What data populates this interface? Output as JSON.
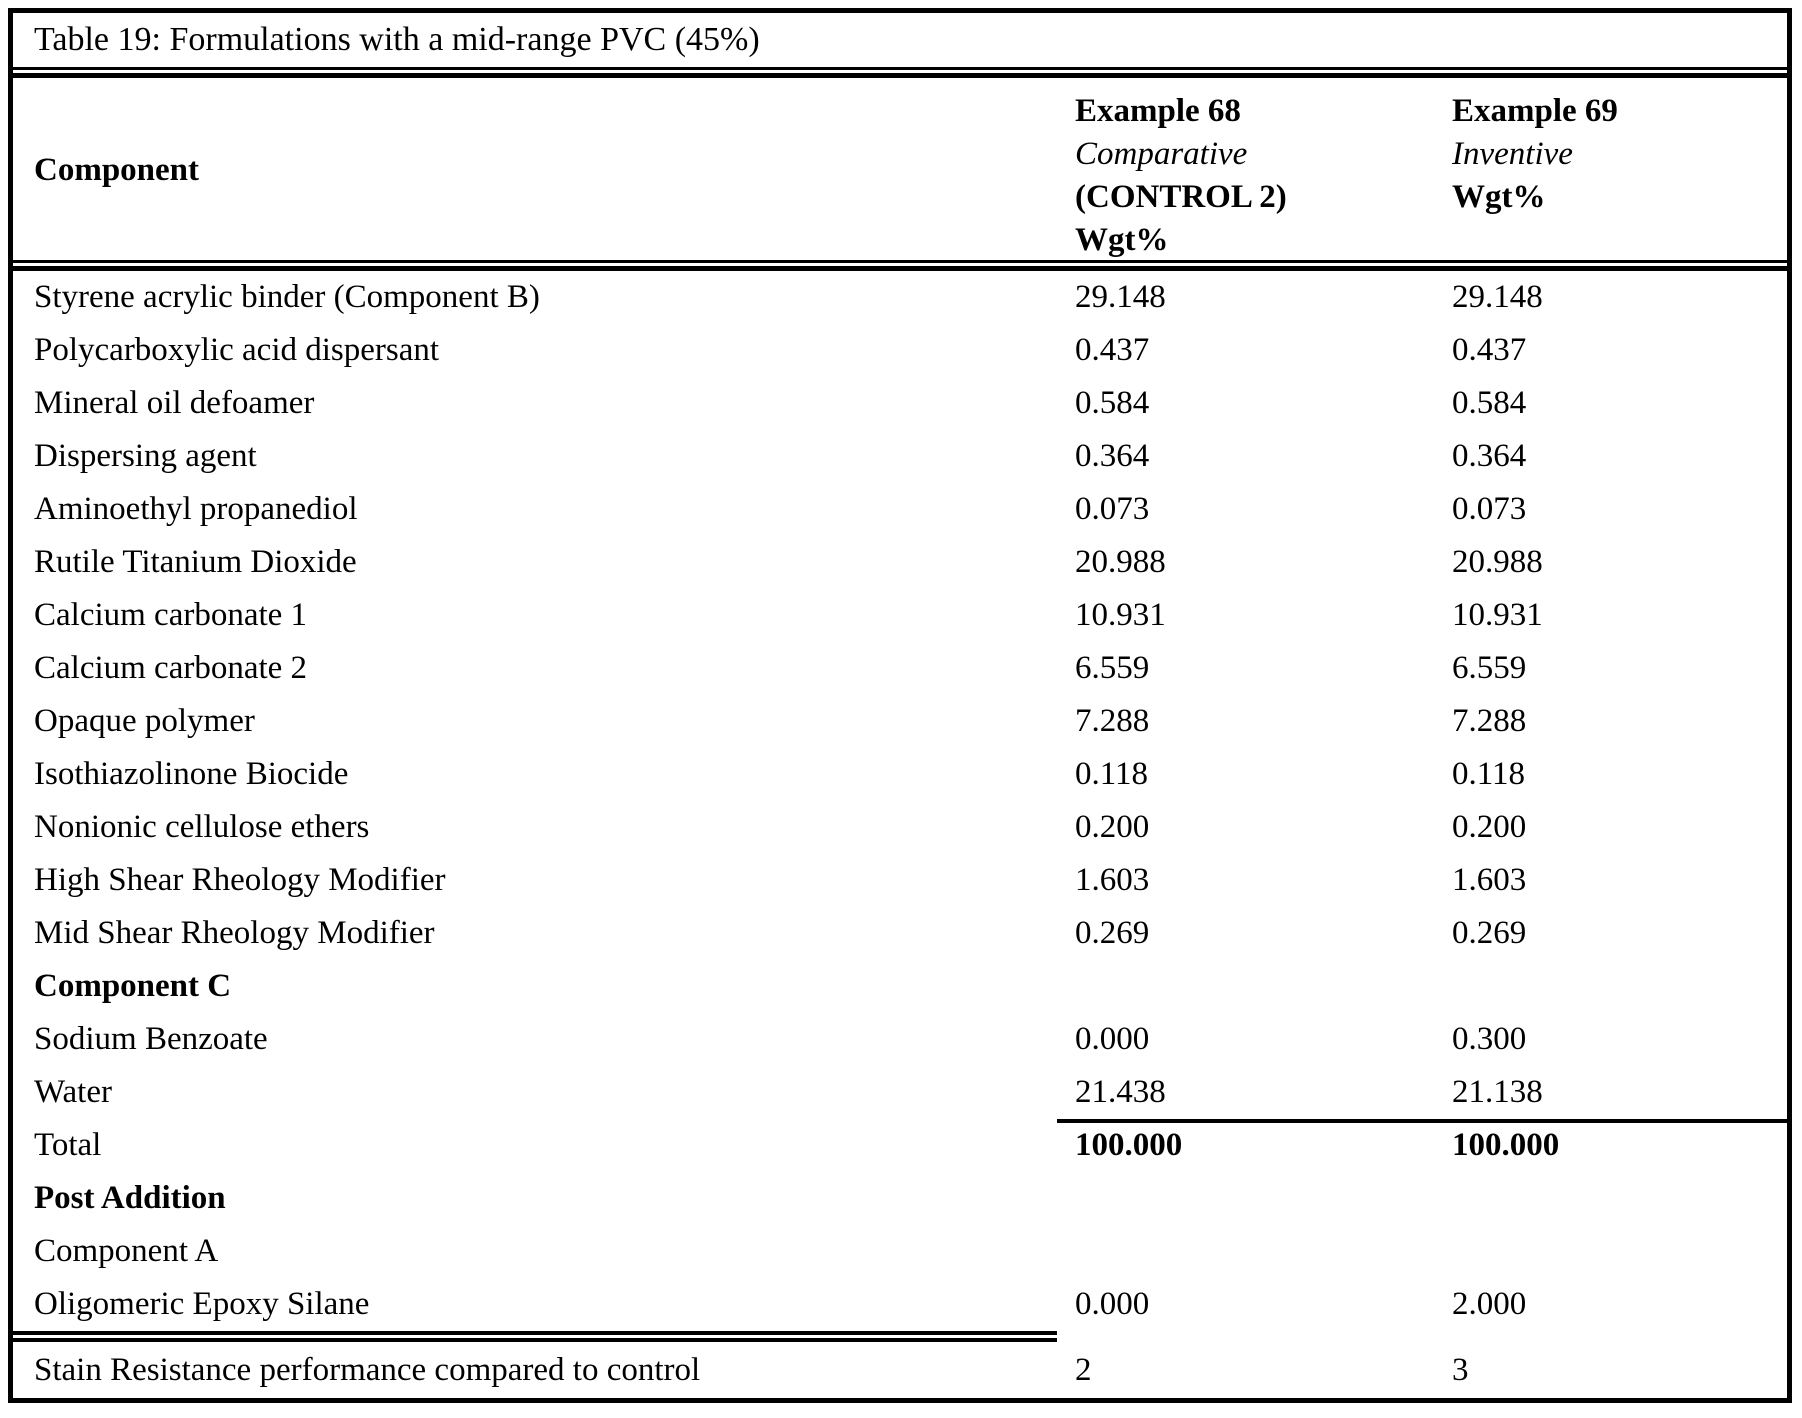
{
  "document": {
    "title": "Table 19: Formulations with a mid-range PVC (45%)",
    "header": {
      "component_label": "Component",
      "example_68": {
        "name": "Example 68",
        "kind": "Comparative",
        "control": "(CONTROL 2)",
        "unit": "Wgt%"
      },
      "example_69": {
        "name": "Example 69",
        "kind": "Inventive",
        "unit": "Wgt%"
      }
    },
    "rows": [
      {
        "label": "Styrene acrylic binder (Component B)",
        "ex68": "29.148",
        "ex69": "29.148",
        "style": "normal"
      },
      {
        "label": "Polycarboxylic acid dispersant",
        "ex68": "0.437",
        "ex69": "0.437",
        "style": "normal"
      },
      {
        "label": "Mineral oil defoamer",
        "ex68": "0.584",
        "ex69": "0.584",
        "style": "normal"
      },
      {
        "label": "Dispersing agent",
        "ex68": "0.364",
        "ex69": "0.364",
        "style": "normal"
      },
      {
        "label": "Aminoethyl propanediol",
        "ex68": "0.073",
        "ex69": "0.073",
        "style": "normal"
      },
      {
        "label": "Rutile Titanium Dioxide",
        "ex68": "20.988",
        "ex69": "20.988",
        "style": "normal"
      },
      {
        "label": "Calcium carbonate 1",
        "ex68": "10.931",
        "ex69": "10.931",
        "style": "normal"
      },
      {
        "label": "Calcium carbonate 2",
        "ex68": "6.559",
        "ex69": "6.559",
        "style": "normal"
      },
      {
        "label": "Opaque polymer",
        "ex68": "7.288",
        "ex69": "7.288",
        "style": "normal"
      },
      {
        "label": "Isothiazolinone Biocide",
        "ex68": "0.118",
        "ex69": "0.118",
        "style": "normal"
      },
      {
        "label": "Nonionic cellulose ethers",
        "ex68": "0.200",
        "ex69": "0.200",
        "style": "normal"
      },
      {
        "label": "High Shear Rheology Modifier",
        "ex68": "1.603",
        "ex69": "1.603",
        "style": "normal"
      },
      {
        "label": "Mid Shear Rheology Modifier",
        "ex68": "0.269",
        "ex69": "0.269",
        "style": "normal"
      },
      {
        "label": "Component C",
        "ex68": "",
        "ex69": "",
        "style": "section"
      },
      {
        "label": "Sodium Benzoate",
        "ex68": "0.000",
        "ex69": "0.300",
        "style": "normal"
      },
      {
        "label": "Water",
        "ex68": "21.438",
        "ex69": "21.138",
        "style": "normal"
      },
      {
        "label": "Total",
        "ex68": "100.000",
        "ex69": "100.000",
        "style": "total"
      },
      {
        "label": "Post Addition",
        "ex68": "",
        "ex69": "",
        "style": "section"
      },
      {
        "label": "Component A",
        "ex68": "",
        "ex69": "",
        "style": "normal"
      },
      {
        "label": "Oligomeric Epoxy Silane",
        "ex68": "0.000",
        "ex69": "2.000",
        "style": "normal"
      }
    ],
    "stain_row": {
      "label": "Stain Resistance performance compared to control",
      "ex68": "2",
      "ex69": "3"
    }
  }
}
